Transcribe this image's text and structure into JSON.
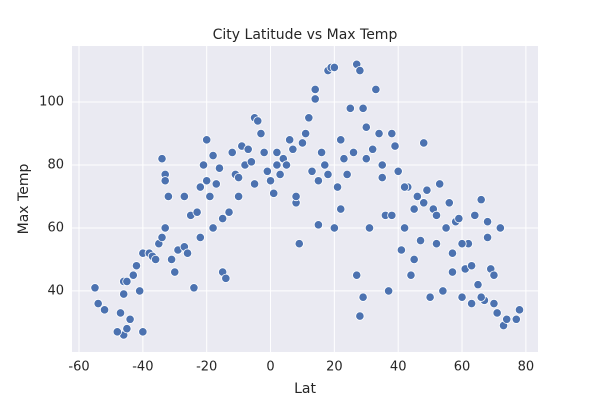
{
  "chart_data": {
    "type": "scatter",
    "title": "City Latitude vs Max Temp",
    "x_label": "Lat",
    "y_label": "Max Temp",
    "color": "#4c72b0",
    "grid": true,
    "xlim": [
      -62.2,
      83.8
    ],
    "ylim": [
      20.6,
      117.8
    ],
    "xticks": [
      -60,
      -40,
      -20,
      0,
      20,
      40,
      60,
      80
    ],
    "yticks": [
      40,
      60,
      80,
      100
    ],
    "x": [
      -55,
      -54,
      -52,
      -47,
      -46,
      -46,
      -45,
      -46,
      -45,
      -43,
      -42,
      -41,
      -40,
      -40,
      -38,
      -37,
      -36,
      -35,
      -34,
      -34,
      -33,
      -33,
      -32,
      -33,
      -31,
      -30,
      -29,
      -27,
      -26,
      -25,
      -24,
      -23,
      -22,
      -21,
      -20,
      -20,
      -19,
      -18,
      -17,
      -16,
      -15,
      -15,
      -14,
      -13,
      -12,
      -11,
      -10,
      -9,
      -8,
      -7,
      -6,
      -5,
      -4,
      -3,
      -2,
      -1,
      0,
      1,
      2,
      3,
      4,
      5,
      6,
      7,
      8,
      9,
      10,
      11,
      12,
      13,
      14,
      14,
      15,
      16,
      17,
      18,
      19,
      20,
      20,
      21,
      22,
      23,
      24,
      25,
      26,
      27,
      27,
      28,
      28,
      29,
      29,
      30,
      31,
      32,
      33,
      34,
      35,
      36,
      37,
      38,
      39,
      40,
      41,
      42,
      43,
      44,
      45,
      46,
      47,
      48,
      49,
      50,
      51,
      52,
      53,
      54,
      55,
      56,
      57,
      58,
      59,
      60,
      61,
      62,
      63,
      64,
      65,
      66,
      67,
      68,
      69,
      70,
      71,
      72,
      73,
      74,
      77,
      78,
      -48,
      -44,
      -27,
      -22,
      -18,
      -10,
      -5,
      2,
      8,
      15,
      18,
      22,
      30,
      35,
      38,
      42,
      45,
      48,
      52,
      57,
      60,
      63,
      66,
      68,
      70
    ],
    "y": [
      41,
      36,
      34,
      33,
      39,
      43,
      43,
      26,
      28,
      45,
      48,
      40,
      27,
      52,
      52,
      51,
      50,
      55,
      57,
      82,
      77,
      75,
      70,
      60,
      50,
      46,
      53,
      54,
      52,
      64,
      41,
      65,
      73,
      80,
      88,
      75,
      70,
      83,
      74,
      79,
      63,
      46,
      44,
      65,
      84,
      77,
      70,
      86,
      80,
      85,
      81,
      95,
      94,
      90,
      84,
      78,
      75,
      71,
      80,
      77,
      82,
      80,
      88,
      85,
      68,
      55,
      87,
      90,
      95,
      78,
      104,
      101,
      61,
      84,
      80,
      110,
      111,
      111,
      60,
      73,
      88,
      82,
      77,
      98,
      84,
      112,
      45,
      110,
      32,
      38,
      98,
      92,
      60,
      85,
      104,
      90,
      76,
      64,
      40,
      90,
      86,
      78,
      53,
      60,
      73,
      45,
      66,
      70,
      56,
      87,
      72,
      38,
      66,
      55,
      74,
      40,
      60,
      68,
      52,
      62,
      63,
      38,
      47,
      55,
      36,
      64,
      42,
      69,
      37,
      57,
      47,
      36,
      33,
      60,
      29,
      31,
      31,
      34,
      27,
      31,
      70,
      57,
      60,
      76,
      74,
      84,
      70,
      75,
      77,
      66,
      82,
      80,
      64,
      73,
      50,
      68,
      64,
      46,
      55,
      48,
      38,
      62,
      45
    ]
  }
}
